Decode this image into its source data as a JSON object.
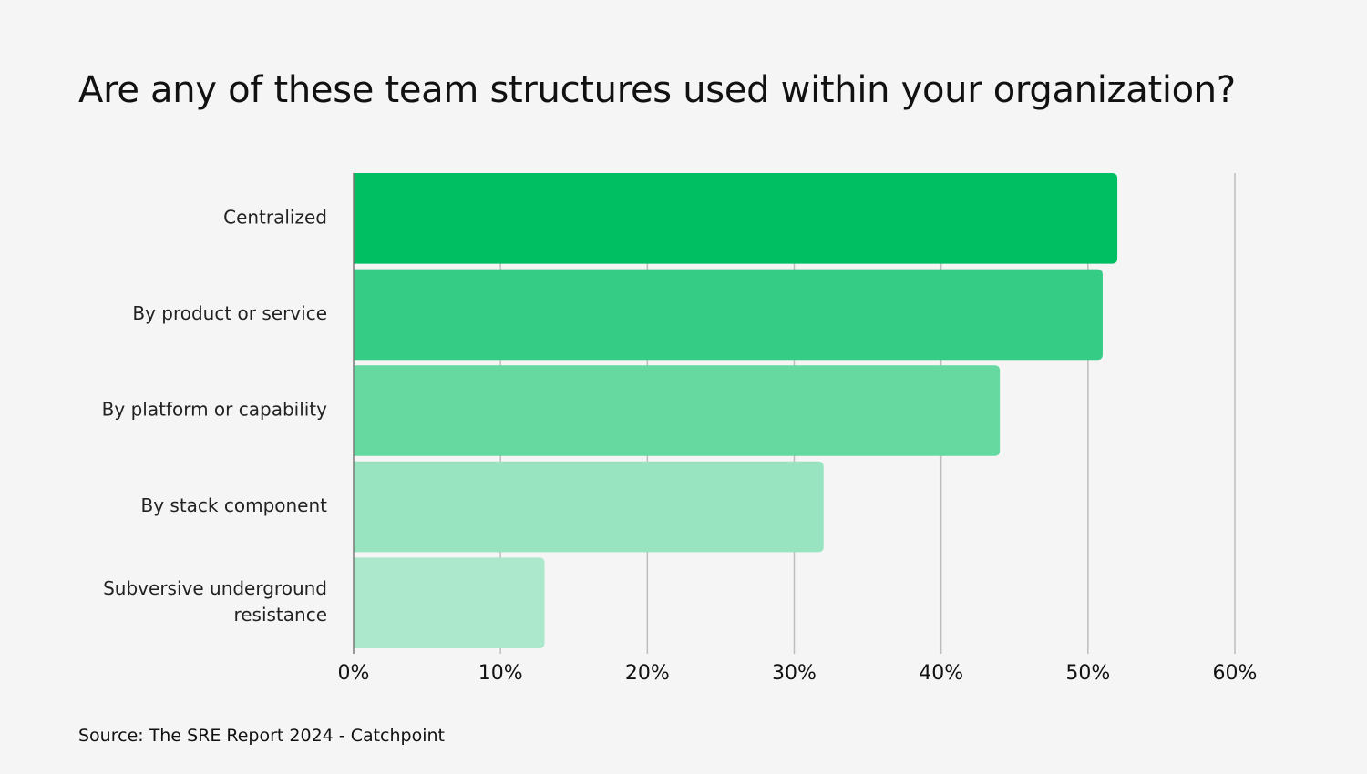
{
  "title": "Are any of these team structures used within your organization?",
  "source": "Source: The SRE Report 2024 - Catchpoint",
  "chart_data": {
    "type": "bar",
    "orientation": "horizontal",
    "categories": [
      [
        "Centralized"
      ],
      [
        "By product or service"
      ],
      [
        "By platform or capability"
      ],
      [
        "By stack component"
      ],
      [
        "Subversive underground",
        "resistance"
      ]
    ],
    "values": [
      52,
      51,
      44,
      32,
      13
    ],
    "colors": [
      "#00bf63",
      "#35cd86",
      "#66d9a1",
      "#98e4c1",
      "#ace8cc"
    ],
    "xlim": [
      0,
      60
    ],
    "ticks": [
      0,
      10,
      20,
      30,
      40,
      50,
      60
    ],
    "tick_labels": [
      "0%",
      "10%",
      "20%",
      "30%",
      "40%",
      "50%",
      "60%"
    ],
    "grid": true
  }
}
